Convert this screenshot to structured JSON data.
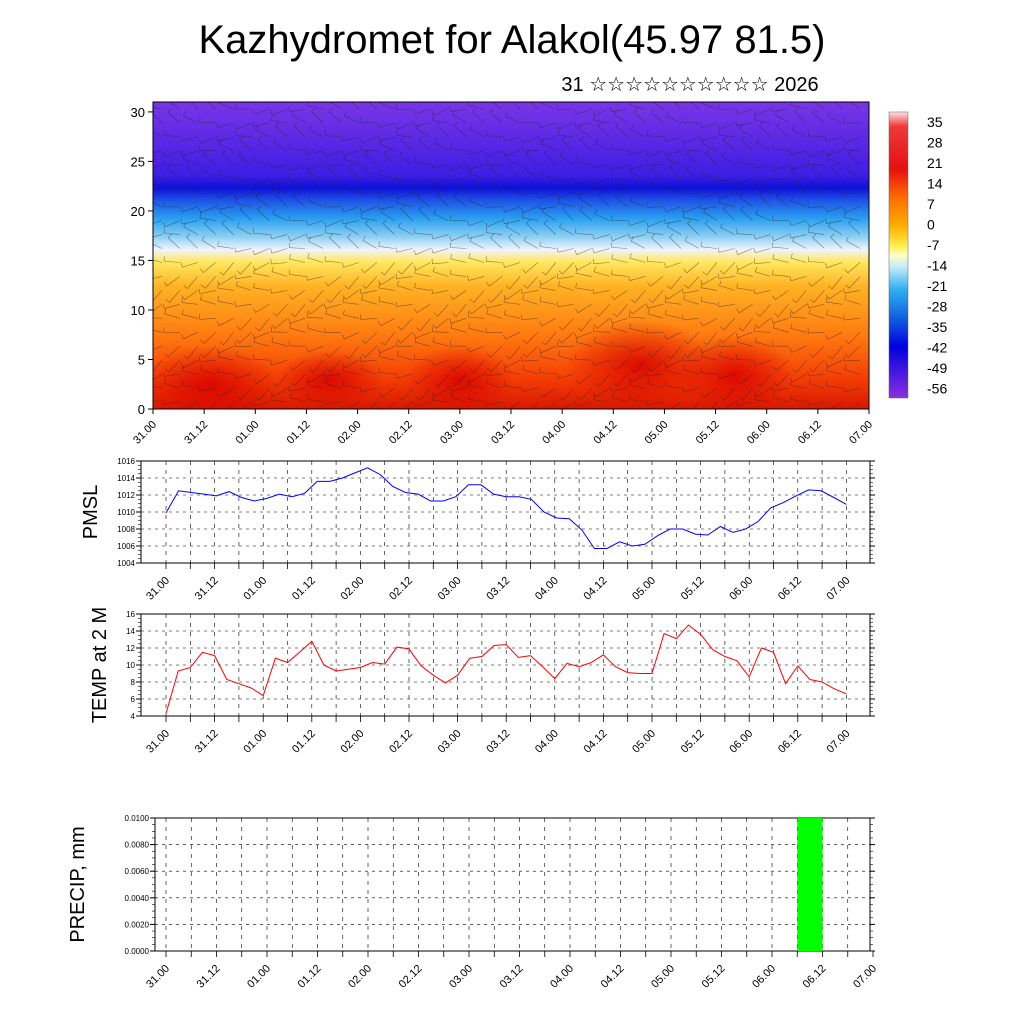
{
  "page": {
    "title": "Kazhydromet for Alakol(45.97 81.5)",
    "subtitle": "31 ☆☆☆☆☆☆☆☆☆☆ 2026"
  },
  "time_labels": [
    "31.00",
    "31.12",
    "01.00",
    "01.12",
    "02.00",
    "02.12",
    "03.00",
    "03.12",
    "04.00",
    "04.12",
    "05.00",
    "05.12",
    "06.00",
    "06.12",
    "07.00"
  ],
  "colors": {
    "pmsl_line": "#0000ff",
    "temp_line": "#ff0000",
    "precip_bar": "#00ff00",
    "axis": "#000000"
  },
  "chart_data": [
    {
      "type": "heatmap",
      "title": "",
      "xlabel": "",
      "ylabel": "",
      "x_labels": [
        "31.00",
        "31.12",
        "01.00",
        "01.12",
        "02.00",
        "02.12",
        "03.00",
        "03.12",
        "04.00",
        "04.12",
        "05.00",
        "05.12",
        "06.00",
        "06.12",
        "07.00"
      ],
      "y_ticks": [
        0,
        5,
        10,
        15,
        20,
        25,
        30
      ],
      "ylim": [
        0,
        31
      ],
      "colorbar_labels": [
        "35",
        "28",
        "21",
        "14",
        "7",
        "0",
        "-7",
        "-14",
        "-21",
        "-28",
        "-35",
        "-42",
        "-49",
        "-56"
      ],
      "colorbar_range": [
        -60,
        38
      ],
      "overlay": "wind barbs",
      "grid": false
    },
    {
      "type": "line",
      "title": "",
      "ylabel": "PMSL",
      "x_labels": [
        "31.00",
        "31.12",
        "01.00",
        "01.12",
        "02.00",
        "02.12",
        "03.00",
        "03.12",
        "04.00",
        "04.12",
        "05.00",
        "05.12",
        "06.00",
        "06.12",
        "07.00"
      ],
      "ylim": [
        1004,
        1016
      ],
      "y_ticks": [
        "1016",
        "1014",
        "1012",
        "1010",
        "1008",
        "1006",
        "1004"
      ],
      "grid": true,
      "series": [
        {
          "values": [
            1009.9,
            1012.5,
            1012.3,
            1012.1,
            1011.9,
            1012.4,
            1011.7,
            1011.3,
            1011.6,
            1012.1,
            1011.8,
            1012.2,
            1013.6,
            1013.6,
            1014.0,
            1014.6,
            1015.2,
            1014.4,
            1013.0,
            1012.3,
            1012.1,
            1011.3,
            1011.3,
            1011.8,
            1013.2,
            1013.2,
            1012.1,
            1011.8,
            1011.8,
            1011.5,
            1010.0,
            1009.3,
            1009.2,
            1007.9,
            1005.7,
            1005.7,
            1006.5,
            1006.0,
            1006.2,
            1007.2,
            1008.0,
            1008.0,
            1007.4,
            1007.3,
            1008.3,
            1007.6,
            1008.0,
            1008.9,
            1010.5,
            1011.1,
            1011.9,
            1012.6,
            1012.5,
            1011.7,
            1010.9
          ]
        }
      ]
    },
    {
      "type": "line",
      "title": "",
      "ylabel": "TEMP at 2 M",
      "x_labels": [
        "31.00",
        "31.12",
        "01.00",
        "01.12",
        "02.00",
        "02.12",
        "03.00",
        "03.12",
        "04.00",
        "04.12",
        "05.00",
        "05.12",
        "06.00",
        "06.12",
        "07.00"
      ],
      "ylim": [
        4,
        16
      ],
      "y_ticks": [
        "16",
        "14",
        "12",
        "10",
        "8",
        "6",
        "4"
      ],
      "grid": true,
      "series": [
        {
          "values": [
            4.3,
            9.3,
            9.7,
            11.5,
            11.1,
            8.3,
            7.8,
            7.3,
            6.4,
            10.8,
            10.3,
            11.5,
            12.8,
            10.0,
            9.3,
            9.5,
            9.7,
            10.3,
            10.1,
            12.1,
            11.9,
            9.9,
            8.8,
            7.9,
            8.8,
            10.8,
            11.0,
            12.3,
            12.4,
            10.9,
            11.1,
            9.8,
            8.4,
            10.2,
            9.8,
            10.3,
            11.2,
            9.8,
            9.1,
            9.0,
            9.0,
            13.7,
            13.1,
            14.7,
            13.6,
            11.8,
            11.0,
            10.5,
            8.6,
            12.0,
            11.5,
            7.8,
            9.9,
            8.3,
            8.0,
            7.2,
            6.6
          ]
        }
      ]
    },
    {
      "type": "bar",
      "title": "",
      "ylabel": "PRECIP, mm",
      "x_labels": [
        "31.00",
        "31.12",
        "01.00",
        "01.12",
        "02.00",
        "02.12",
        "03.00",
        "03.12",
        "04.00",
        "04.12",
        "05.00",
        "05.12",
        "06.00",
        "06.12",
        "07.00"
      ],
      "ylim": [
        0,
        0.01
      ],
      "y_ticks": [
        "0.0100",
        "0.0080",
        "0.0060",
        "0.0040",
        "0.0020",
        "0.0000"
      ],
      "grid": true,
      "bars": [
        {
          "x_start": 6.25,
          "x_end": 6.5,
          "value": 0.01
        }
      ]
    }
  ]
}
